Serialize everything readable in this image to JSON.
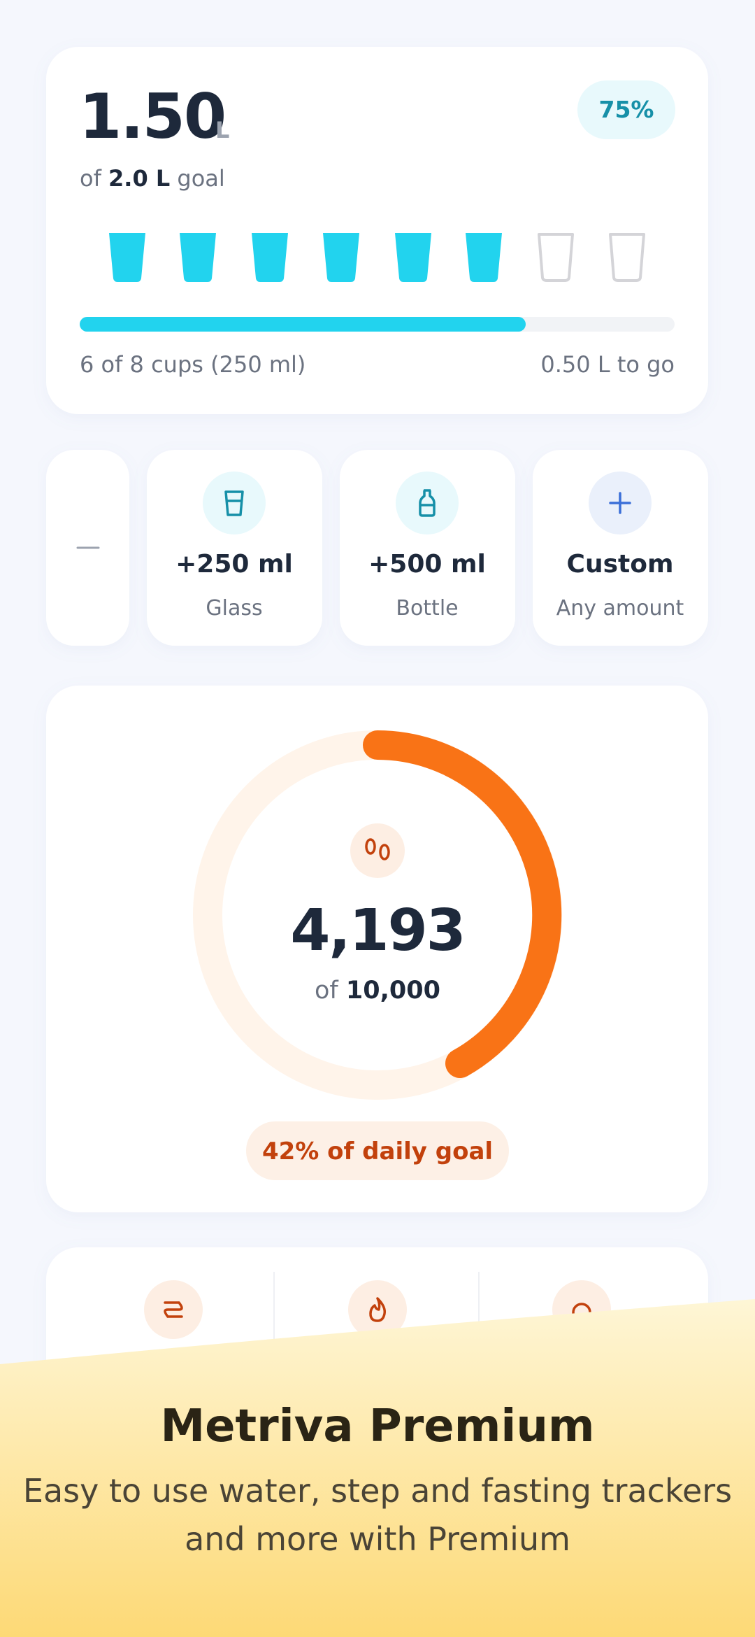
{
  "water": {
    "amount": "1.50",
    "unit": "L",
    "percent": "75%",
    "goal_prefix": "of",
    "goal": "2.0 L",
    "goal_suffix": "goal",
    "cups_text": "6 of 8 cups (250 ml)",
    "remaining": "0.50 L to go"
  },
  "quick_add": [
    {
      "title": "+250 ml",
      "subtitle": "Glass"
    },
    {
      "title": "+500 ml",
      "subtitle": "Bottle"
    },
    {
      "title": "Custom",
      "subtitle": "Any amount"
    }
  ],
  "steps": {
    "count": "4,193",
    "goal_prefix": "of",
    "goal": "10,000",
    "badge": "42% of daily goal"
  },
  "premium": {
    "title": "Metriva Premium",
    "subtitle_lines": [
      "Easy to use water, step and fasting trackers",
      "and more with Premium"
    ]
  }
}
